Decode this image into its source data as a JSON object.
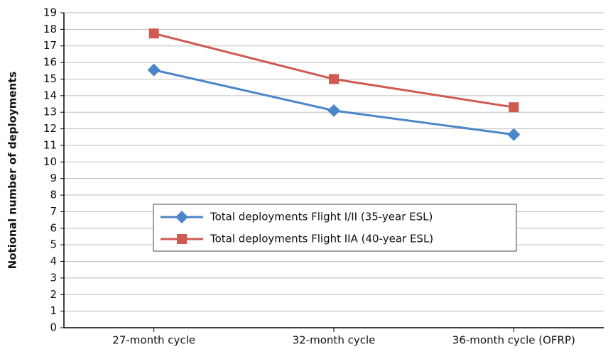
{
  "chart_data": {
    "type": "line",
    "y_label": "Notional number of deployments",
    "categories": [
      "27-month cycle",
      "32-month cycle",
      "36-month cycle (OFRP)"
    ],
    "series": [
      {
        "name": "Total deployments Flight I/II (35-year ESL)",
        "color": "#4a86c8",
        "marker": "diamond",
        "values": [
          15.55,
          13.1,
          11.65
        ]
      },
      {
        "name": "Total deployments Flight IIA (40-year ESL)",
        "color": "#cf5a52",
        "marker": "square",
        "values": [
          17.75,
          15.0,
          13.3
        ]
      }
    ],
    "ylim": [
      0,
      19
    ],
    "yticks": [
      0,
      1,
      2,
      3,
      4,
      5,
      6,
      7,
      8,
      9,
      10,
      11,
      12,
      13,
      14,
      15,
      16,
      17,
      18,
      19
    ],
    "grid": true,
    "legend": "center"
  }
}
